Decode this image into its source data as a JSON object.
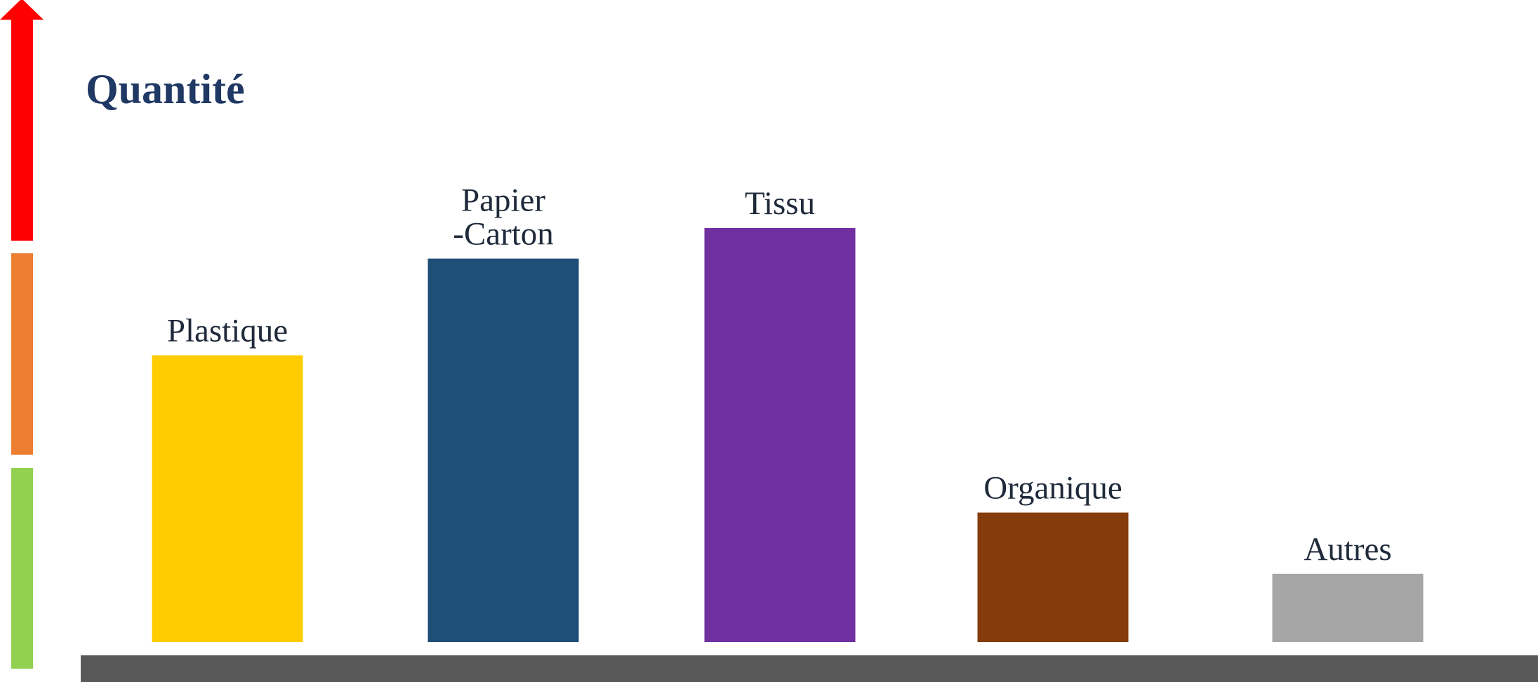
{
  "chart_data": {
    "type": "bar",
    "title": "Quantité",
    "xlabel": "",
    "ylabel": "",
    "ylim": [
      0,
      600
    ],
    "categories": [
      "Plastique",
      "Papier\n-Carton",
      "Tissu",
      "Organique",
      "Autres"
    ],
    "values": [
      412,
      551,
      595,
      186,
      98
    ],
    "colors": [
      "#FFCC00",
      "#1F4E79",
      "#7030A0",
      "#843C0C",
      "#A6A6A6"
    ],
    "grid": false,
    "legend": "none",
    "scale_levels": [
      {
        "level": "low",
        "color": "#92D050"
      },
      {
        "level": "medium",
        "color": "#ED7D31"
      },
      {
        "level": "high",
        "color": "#FF0000"
      }
    ],
    "baseline_color": "#595959"
  },
  "style": {
    "title_color": "#1F3864",
    "label_color": "#1F2A3A"
  }
}
